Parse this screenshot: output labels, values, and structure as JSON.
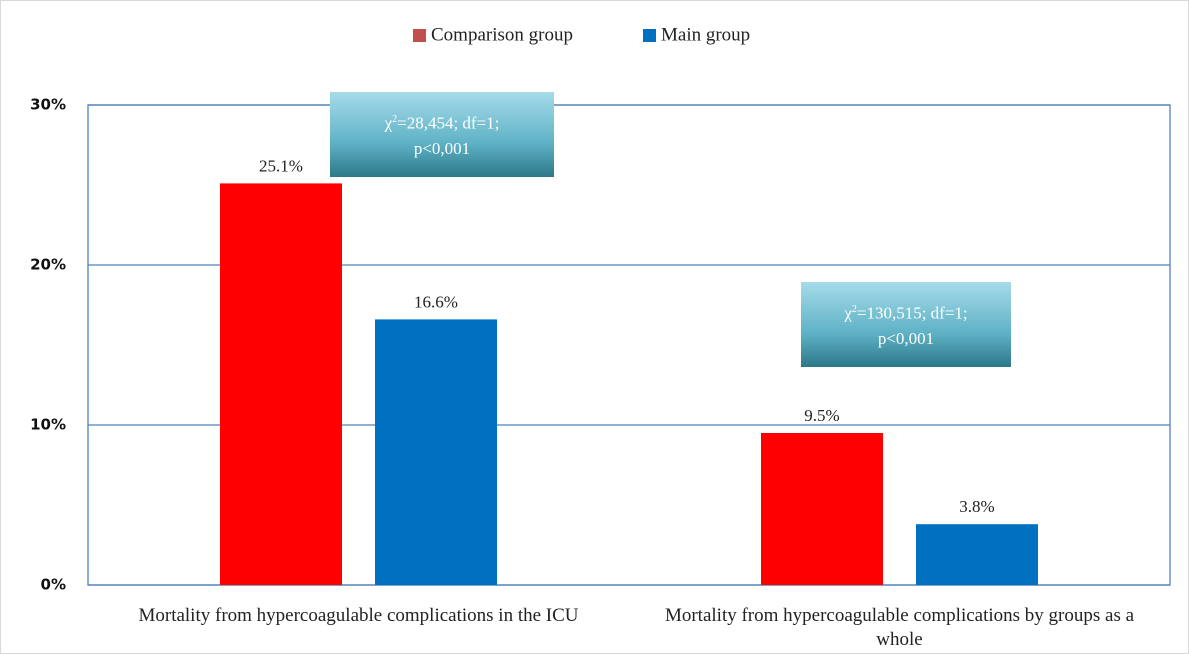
{
  "chart_data": {
    "type": "bar",
    "categories": [
      "Mortality from hypercoagulable complications in the ICU",
      "Mortality from hypercoagulable complications by groups as a whole"
    ],
    "series": [
      {
        "name": "Comparison group",
        "color": "#ff0000",
        "legend_color": "#c0504d",
        "values": [
          25.1,
          9.5
        ],
        "value_labels": [
          "25.1%",
          "9.5%"
        ]
      },
      {
        "name": "Main group",
        "color": "#0070c0",
        "values": [
          16.6,
          3.8
        ],
        "value_labels": [
          "16.6%",
          "3.8%"
        ]
      }
    ],
    "ylim": [
      0,
      30
    ],
    "yticks": [
      {
        "value": 0,
        "label": "0%"
      },
      {
        "value": 10,
        "label": "10%"
      },
      {
        "value": 20,
        "label": "20%"
      },
      {
        "value": 30,
        "label": "30%"
      }
    ],
    "grid": true,
    "legend": "top",
    "annotations": [
      {
        "symbol": "χ",
        "superscript": "2",
        "rest": "=28,454; df=1;",
        "line2": "p<0,001"
      },
      {
        "symbol": "χ",
        "superscript": "2",
        "rest": "=130,515; df=1;",
        "line2": "p<0,001"
      }
    ]
  }
}
